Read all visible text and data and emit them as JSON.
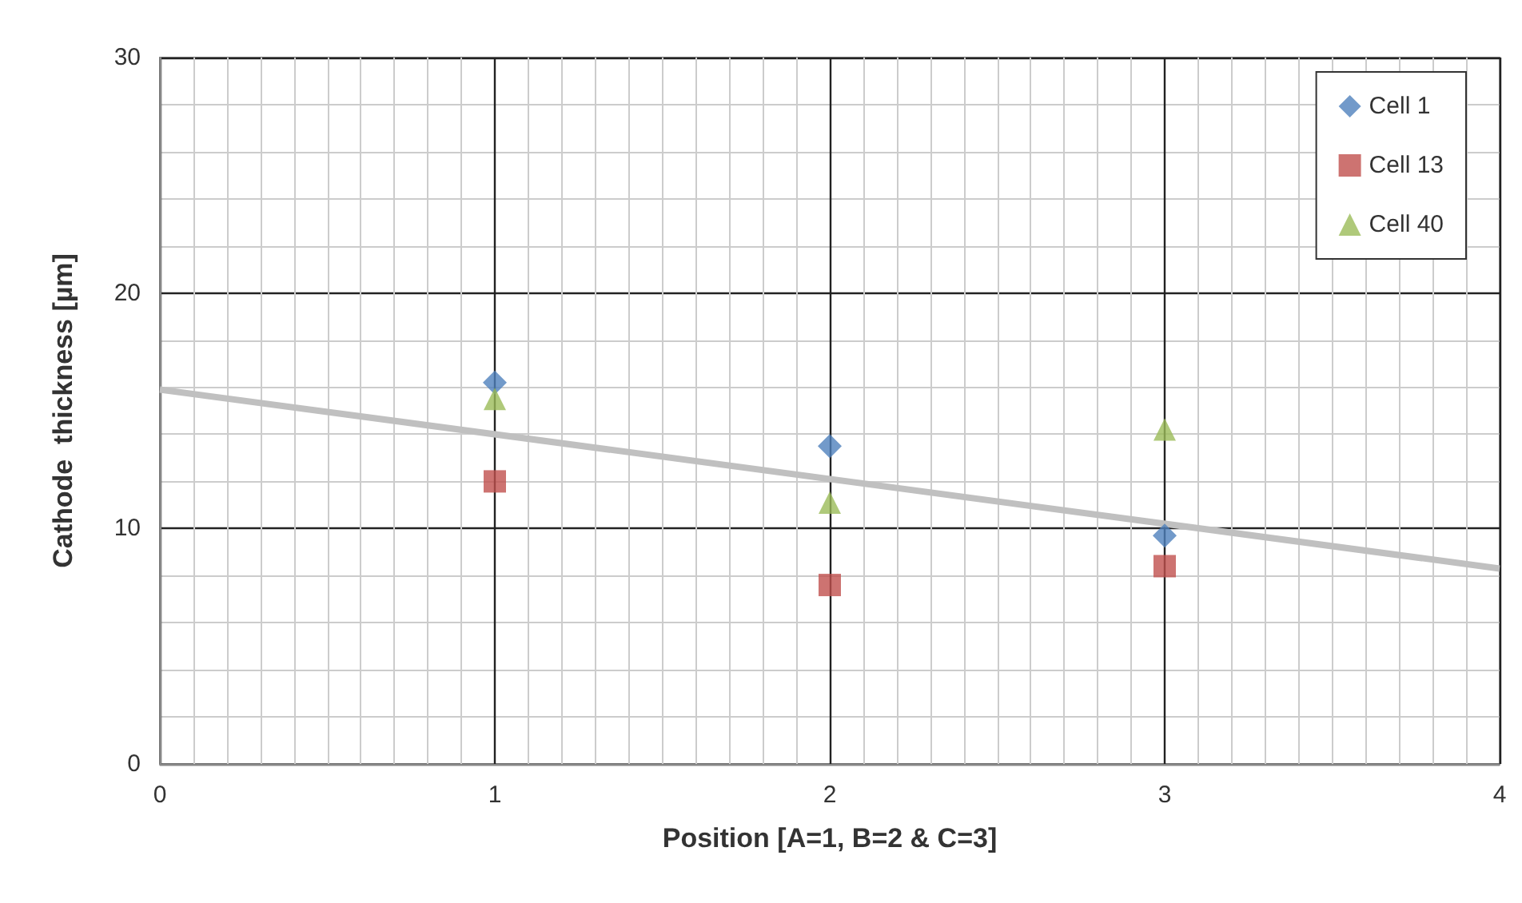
{
  "chart_data": {
    "type": "scatter",
    "xlabel": "Position [A=1, B=2 & C=3]",
    "ylabel": "Cathode  thickness [µm]",
    "xlim": [
      0,
      4
    ],
    "xticks": [
      0,
      1,
      2,
      3,
      4
    ],
    "ylim": [
      0,
      30
    ],
    "yticks": [
      0,
      10,
      20,
      30
    ],
    "grid": true,
    "legend": "top right",
    "series": [
      {
        "name": "Cell 1",
        "color": "#4f81bd",
        "marker": "diamond",
        "x": [
          1,
          2,
          3
        ],
        "values": [
          16.2,
          13.5,
          9.7
        ]
      },
      {
        "name": "Cell 13",
        "color": "#c0504d",
        "marker": "square",
        "x": [
          1,
          2,
          3
        ],
        "values": [
          12.0,
          7.6,
          8.4
        ]
      },
      {
        "name": "Cell 40",
        "color": "#9bbb59",
        "marker": "triangle",
        "x": [
          1,
          2,
          3
        ],
        "values": [
          15.5,
          11.1,
          14.2
        ]
      },
      {
        "type": "line",
        "color": "#c0c0c0",
        "marker": "none",
        "x": [
          0,
          4
        ],
        "values": [
          15.9,
          8.3
        ]
      }
    ]
  }
}
